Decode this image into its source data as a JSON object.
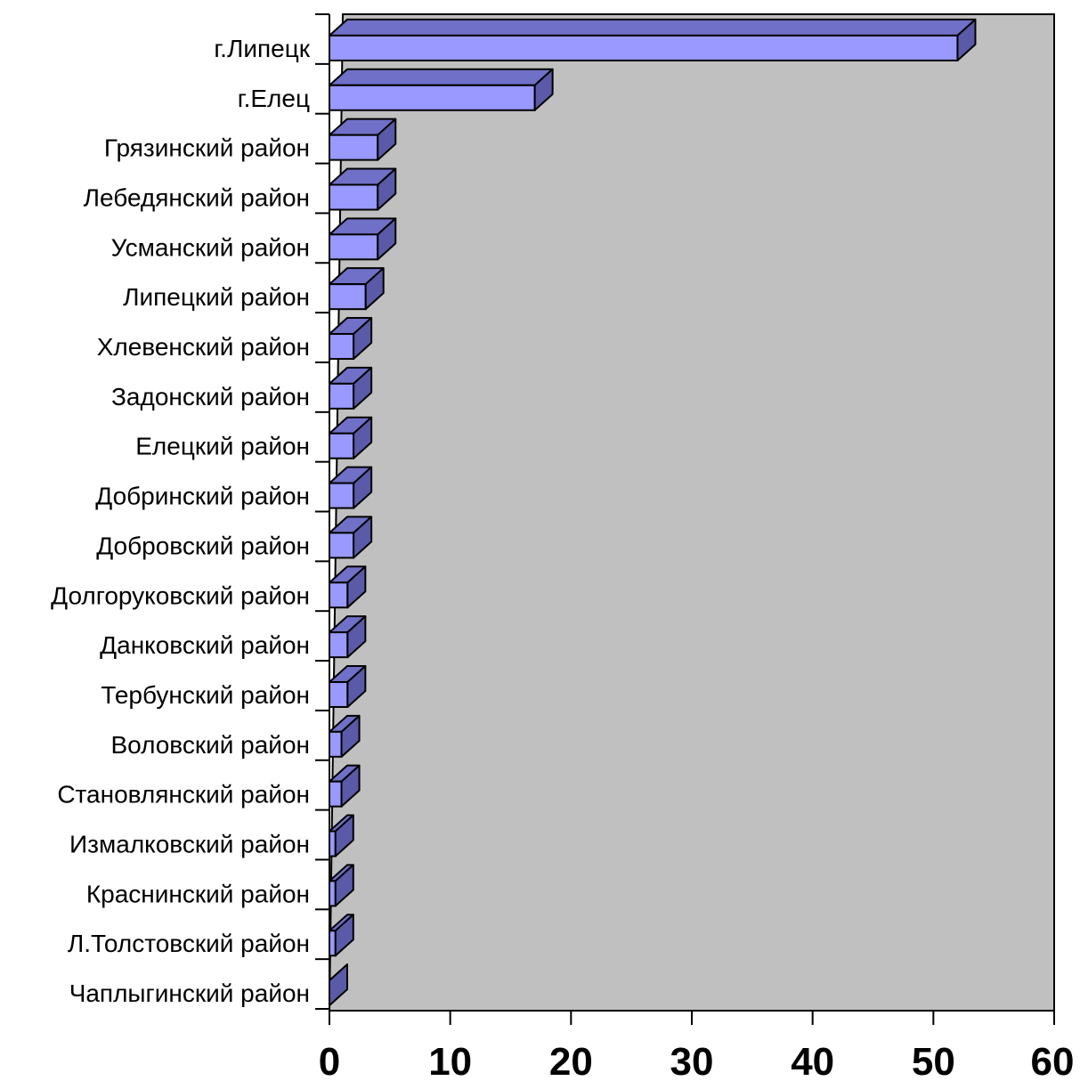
{
  "chart_data": {
    "type": "bar",
    "orientation": "horizontal",
    "style": "3d",
    "title": "",
    "xlabel": "",
    "ylabel": "",
    "categories": [
      "г.Липецк",
      "г.Елец",
      "Грязинский район",
      "Лебедянский район",
      "Усманский район",
      "Липецкий район",
      "Хлевенский район",
      "Задонский район",
      "Елецкий район",
      "Добринский район",
      "Добровский район",
      "Долгоруковский район",
      "Данковский район",
      "Тербунский район",
      "Воловский район",
      "Становлянский район",
      "Измалковский район",
      "Краснинский район",
      "Л.Толстовский район",
      "Чаплыгинский район"
    ],
    "values": [
      52,
      17,
      4,
      4,
      4,
      3,
      2,
      2,
      2,
      2,
      2,
      1.5,
      1.5,
      1.5,
      1,
      1,
      0.5,
      0.5,
      0.5,
      0
    ],
    "xlim": [
      0,
      60
    ],
    "xticks": [
      "0",
      "10",
      "20",
      "30",
      "40",
      "50",
      "60"
    ],
    "grid": false,
    "legend": "none",
    "colors": {
      "bar_front": "#9999ff",
      "bar_top": "#7070c8",
      "bar_side": "#5a5aa8",
      "plot_background": "#c0c0c0",
      "stroke": "#000000"
    }
  }
}
